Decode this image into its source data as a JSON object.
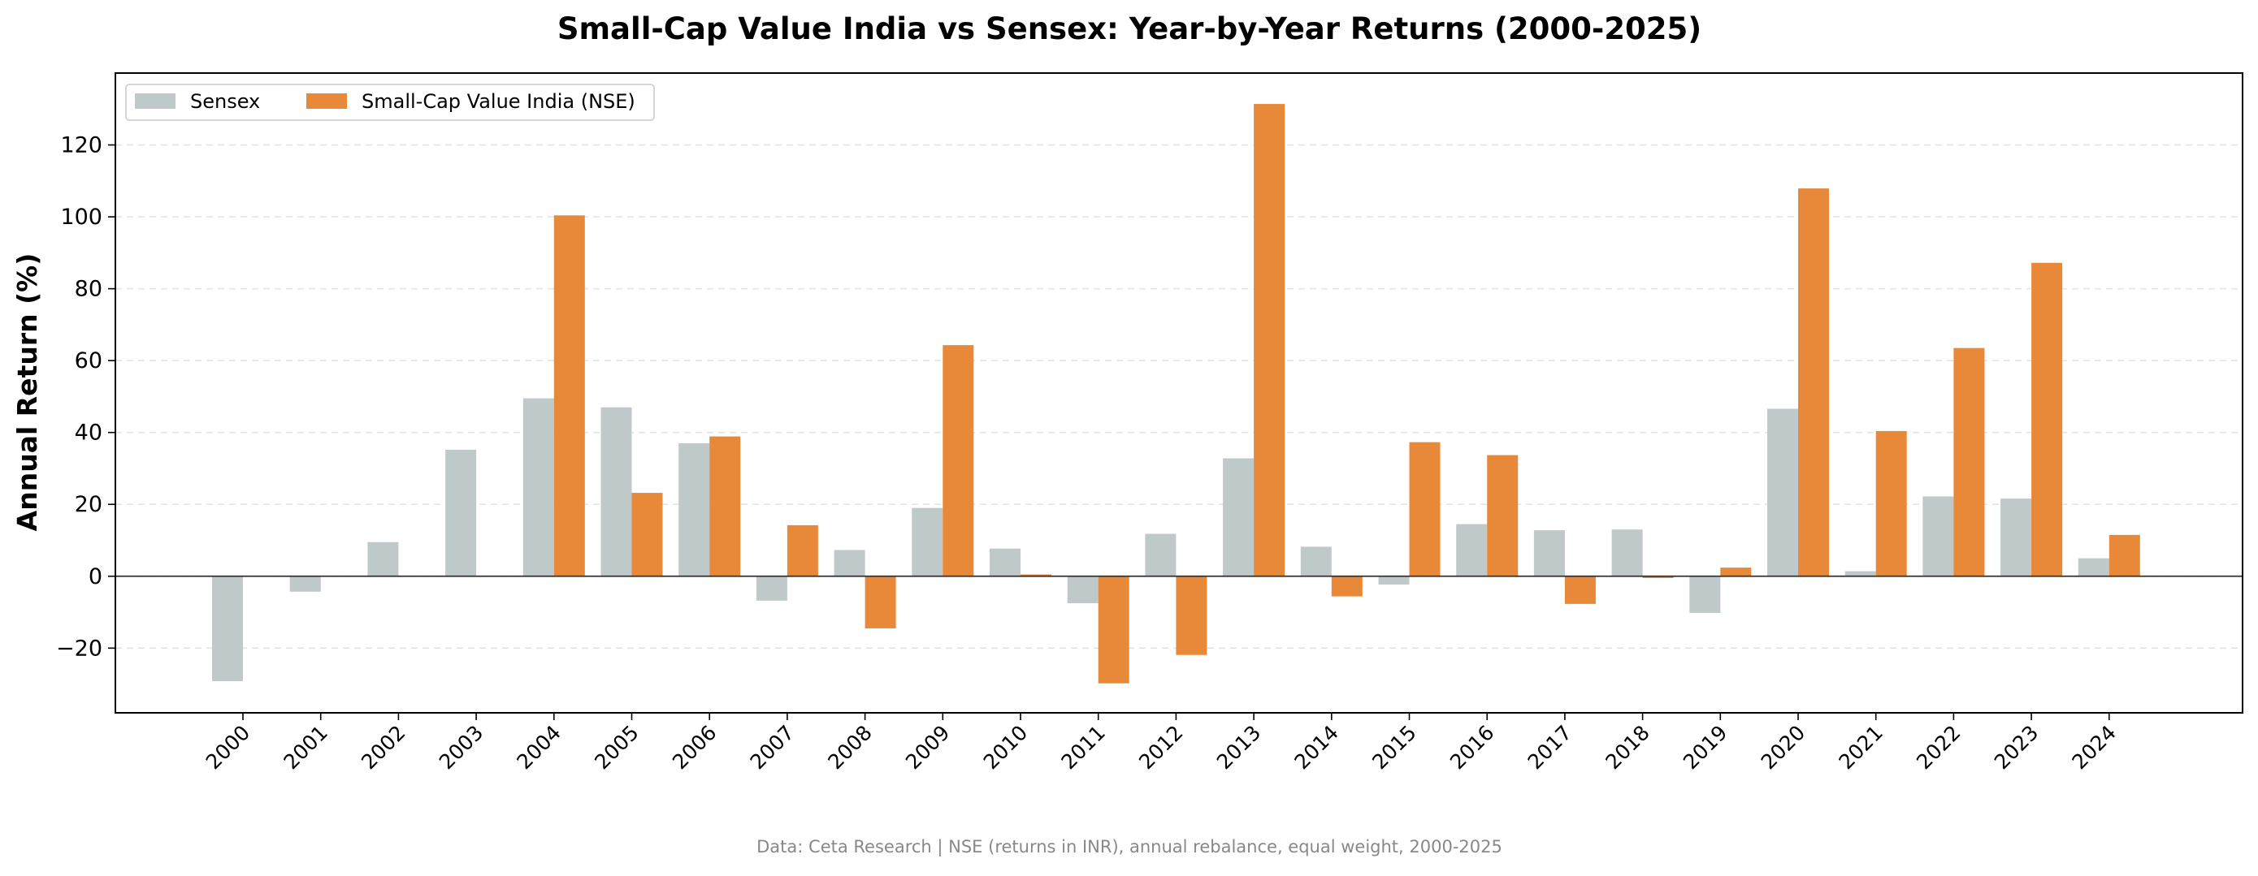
{
  "chart_data": {
    "type": "bar",
    "title": "Small-Cap Value India vs Sensex: Year-by-Year Returns (2000-2025)",
    "xlabel": "",
    "ylabel": "Annual Return (%)",
    "ylim": [
      -38,
      140
    ],
    "yticks": [
      -20,
      0,
      20,
      40,
      60,
      80,
      100,
      120
    ],
    "ytick_labels": [
      "−20",
      "0",
      "20",
      "40",
      "60",
      "80",
      "100",
      "120"
    ],
    "grid": "horizontal dashed",
    "legend_position": "top-left",
    "categories": [
      "2000",
      "2001",
      "2002",
      "2003",
      "2004",
      "2005",
      "2006",
      "2007",
      "2008",
      "2009",
      "2010",
      "2011",
      "2012",
      "2013",
      "2014",
      "2015",
      "2016",
      "2017",
      "2018",
      "2019",
      "2020",
      "2021",
      "2022",
      "2023",
      "2024"
    ],
    "series": [
      {
        "name": "Sensex",
        "color": "#bfc9c9",
        "values": [
          -29.2,
          -4.3,
          9.5,
          35.2,
          49.5,
          47.0,
          37.0,
          -6.8,
          7.3,
          19.0,
          7.7,
          -7.5,
          11.8,
          32.8,
          8.2,
          -2.3,
          14.5,
          12.8,
          13.0,
          -10.2,
          46.6,
          1.4,
          22.2,
          21.6,
          5.0
        ]
      },
      {
        "name": "Small-Cap Value India (NSE)",
        "color": "#e8893a",
        "values": [
          null,
          null,
          null,
          null,
          100.4,
          23.2,
          38.9,
          14.2,
          -14.5,
          64.3,
          0.5,
          -29.8,
          -21.9,
          131.4,
          -5.6,
          37.3,
          33.7,
          -7.7,
          -0.5,
          2.4,
          107.9,
          40.4,
          63.5,
          87.2,
          11.5
        ]
      }
    ],
    "footnote": "Data: Ceta Research | NSE (returns in INR), annual rebalance, equal weight, 2000-2025"
  }
}
